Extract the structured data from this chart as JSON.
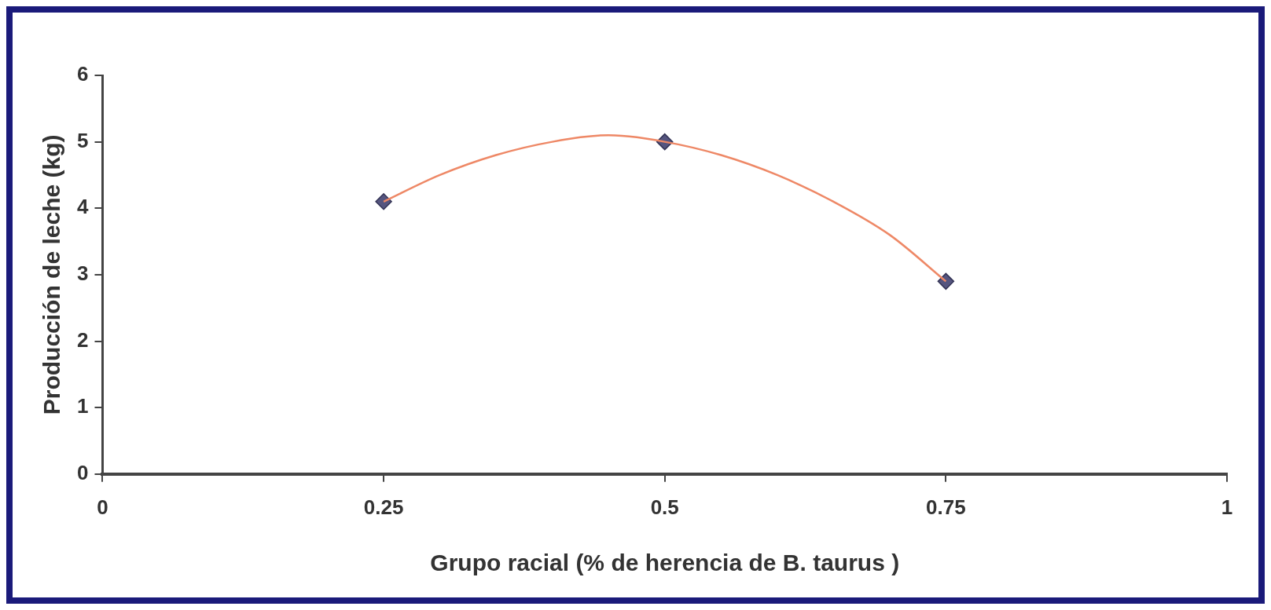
{
  "chart_data": {
    "type": "scatter",
    "xlabel": "Grupo racial (% de herencia de B. taurus )",
    "ylabel": "Producción de leche (kg)",
    "xlim": [
      0,
      1
    ],
    "xticks": [
      0,
      0.25,
      0.5,
      0.75,
      1
    ],
    "ylim": [
      0,
      6
    ],
    "yticks": [
      0,
      1,
      2,
      3,
      4,
      5,
      6
    ],
    "grid": false,
    "legend": false,
    "series": [
      {
        "type": "line",
        "color": "#ee8866",
        "marker": "none",
        "x": [
          0.25,
          0.3,
          0.35,
          0.4,
          0.45,
          0.5,
          0.55,
          0.6,
          0.65,
          0.7,
          0.75
        ],
        "values": [
          4.1,
          4.5,
          4.8,
          5.0,
          5.1,
          5.0,
          4.8,
          4.5,
          4.1,
          3.6,
          2.9
        ]
      },
      {
        "type": "scatter",
        "color": "#55557f",
        "marker": "diamond",
        "x": [
          0.25,
          0.5,
          0.75
        ],
        "values": [
          4.1,
          5.0,
          2.9
        ]
      }
    ]
  }
}
